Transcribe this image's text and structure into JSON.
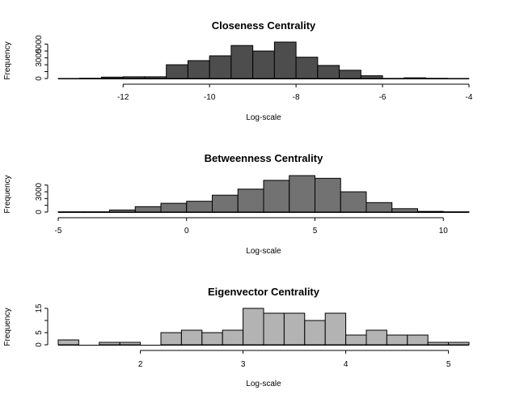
{
  "chart_data": [
    {
      "type": "bar",
      "title": "Closeness Centrality",
      "xlabel": "Log-scale",
      "ylabel": "Frequency",
      "bar_color": "#4d4d4d",
      "bin_width": 0.5,
      "bins_start": -13.5,
      "values": [
        5,
        40,
        200,
        250,
        250,
        2000,
        2600,
        3300,
        4800,
        4000,
        5300,
        3100,
        1900,
        1200,
        400,
        20,
        100,
        30,
        5
      ],
      "xlim": [
        -13.5,
        -4.0
      ],
      "ylim": [
        0,
        5300
      ],
      "xticks": [
        -12,
        -10,
        -8,
        -6,
        -4
      ],
      "xtick_labels": [
        "-12",
        "-10",
        "-8",
        "-6",
        "-4"
      ],
      "yticks": [
        0,
        1000,
        2000,
        3000,
        4000,
        5000
      ],
      "ytick_labels": [
        "0",
        "",
        "",
        "3000",
        "",
        "5000"
      ],
      "grid": false
    },
    {
      "type": "bar",
      "title": "Betweenness Centrality",
      "xlabel": "Log-scale",
      "ylabel": "Frequency",
      "bar_color": "#727272",
      "bin_width": 1,
      "bins_start": -5,
      "values": [
        40,
        40,
        300,
        800,
        1300,
        1600,
        2500,
        3400,
        4700,
        5400,
        5000,
        3000,
        1400,
        500,
        100,
        40
      ],
      "xlim": [
        -5,
        11
      ],
      "ylim": [
        0,
        5400
      ],
      "xticks": [
        -5,
        0,
        5,
        10
      ],
      "xtick_labels": [
        "-5",
        "0",
        "5",
        "10"
      ],
      "yticks": [
        0,
        1000,
        2000,
        3000,
        4000
      ],
      "ytick_labels": [
        "0",
        "",
        "",
        "3000",
        ""
      ],
      "grid": false
    },
    {
      "type": "bar",
      "title": "Eigenvector Centrality",
      "xlabel": "Log-scale",
      "ylabel": "Frequency",
      "bar_color": "#b3b3b3",
      "bin_width": 0.2,
      "bins_start": 1.2,
      "values": [
        2,
        0,
        1,
        1,
        0,
        5,
        6,
        5,
        6,
        15,
        13,
        13,
        10,
        13,
        4,
        6,
        4,
        4,
        1,
        1
      ],
      "xlim": [
        1.2,
        5.2
      ],
      "ylim": [
        0,
        15
      ],
      "xticks": [
        2,
        3,
        4,
        5
      ],
      "xtick_labels": [
        "2",
        "3",
        "4",
        "5"
      ],
      "yticks": [
        0,
        5,
        10,
        15
      ],
      "ytick_labels": [
        "0",
        "5",
        "",
        "15"
      ],
      "grid": false
    }
  ]
}
